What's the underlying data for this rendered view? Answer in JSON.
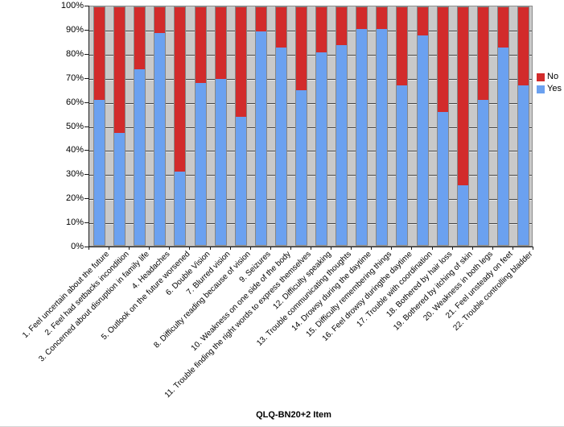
{
  "chart_data": {
    "type": "bar",
    "stacked": true,
    "orientation": "vertical",
    "title": "",
    "xlabel": "QLQ-BN20+2 Item",
    "ylabel": "",
    "ylim": [
      0,
      100
    ],
    "y_tick_labels": [
      "0%",
      "10%",
      "20%",
      "30%",
      "40%",
      "50%",
      "60%",
      "70%",
      "80%",
      "90%",
      "100%"
    ],
    "grid": true,
    "plot_background": "#c9c9c9",
    "categories": [
      "1. Feel uncertain about the future",
      "2. Feel had setbacks incondition",
      "3. Concerned about disruption in family life",
      "4. Headaches",
      "5. Outlook on the future worsened",
      "6. Double Vision",
      "7. Blurred vision",
      "8. Difficulty reading because of vision",
      "9. Seizures",
      "10. Weakness on one side of the body",
      "11. Trouble finding the right words to express themselves",
      "12. Difficulty speaking",
      "13. Trouble communicating thoughts",
      "14. Drowsy during the daytime",
      "15. Difficulty remembering things",
      "16. Feel drowsy duringthe daytime",
      "17. Trouble with coordination",
      "18. Bothered by hair loss",
      "19. Bothered by itching of skin",
      "20. Weakness in both legs",
      "21. Feel unsteady on feet",
      "22. Trouble controlling bladder"
    ],
    "series": [
      {
        "name": "No",
        "color": "#d22b2b",
        "values": [
          39,
          53,
          26,
          11,
          69,
          32,
          30,
          46,
          10,
          17,
          35,
          19,
          16,
          9,
          9,
          33,
          12,
          44,
          75,
          39,
          17,
          33
        ]
      },
      {
        "name": "Yes",
        "color": "#6ba1f0",
        "values": [
          61,
          47,
          74,
          89,
          31,
          68,
          70,
          54,
          90,
          83,
          65,
          81,
          84,
          91,
          91,
          67,
          88,
          56,
          25,
          61,
          83,
          67
        ]
      }
    ],
    "legend": {
      "position": "right",
      "entries": [
        "No",
        "Yes"
      ]
    }
  }
}
